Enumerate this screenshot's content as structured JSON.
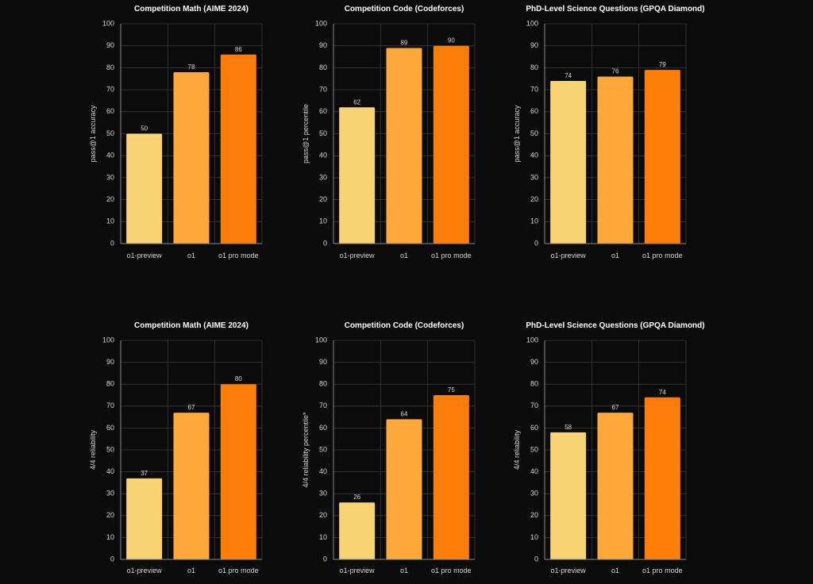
{
  "colors": {
    "background": "#0b0b0b",
    "grid": "#3a3a3a",
    "text": "#d4d4d4",
    "title": "#ffffff",
    "bar_o1_preview": "#f8d374",
    "bar_o1": "#fda83a",
    "bar_o1_pro_mode": "#fd7d0b"
  },
  "chart_data": [
    {
      "type": "bar",
      "title": "Competition Math (AIME 2024)",
      "ylabel": "pass@1 accuracy",
      "xlabel": "",
      "categories": [
        "o1-preview",
        "o1",
        "o1 pro mode"
      ],
      "values": [
        50,
        78,
        86
      ],
      "value_labels": [
        "50",
        "78",
        "86"
      ],
      "ylim": [
        0,
        100
      ],
      "yticks": [
        "0",
        "10",
        "20",
        "30",
        "40",
        "50",
        "60",
        "70",
        "80",
        "90",
        "100"
      ],
      "grid": true
    },
    {
      "type": "bar",
      "title": "Competition Code (Codeforces)",
      "ylabel": "pass@1 percentile",
      "xlabel": "",
      "categories": [
        "o1-preview",
        "o1",
        "o1 pro mode"
      ],
      "values": [
        62,
        89,
        90
      ],
      "value_labels": [
        "62",
        "89",
        "90"
      ],
      "ylim": [
        0,
        100
      ],
      "yticks": [
        "0",
        "10",
        "20",
        "30",
        "40",
        "50",
        "60",
        "70",
        "80",
        "90",
        "100"
      ],
      "grid": true
    },
    {
      "type": "bar",
      "title": "PhD-Level Science Questions (GPQA Diamond)",
      "ylabel": "pass@1 accuracy",
      "xlabel": "",
      "categories": [
        "o1-preview",
        "o1",
        "o1 pro mode"
      ],
      "values": [
        74,
        76,
        79
      ],
      "value_labels": [
        "74",
        "76",
        "79"
      ],
      "ylim": [
        0,
        100
      ],
      "yticks": [
        "0",
        "10",
        "20",
        "30",
        "40",
        "50",
        "60",
        "70",
        "80",
        "90",
        "100"
      ],
      "grid": true
    },
    {
      "type": "bar",
      "title": "Competition Math (AIME 2024)",
      "ylabel": "4/4 reliability",
      "xlabel": "",
      "categories": [
        "o1-preview",
        "o1",
        "o1 pro mode"
      ],
      "values": [
        37,
        67,
        80
      ],
      "value_labels": [
        "37",
        "67",
        "80"
      ],
      "ylim": [
        0,
        100
      ],
      "yticks": [
        "0",
        "10",
        "20",
        "30",
        "40",
        "50",
        "60",
        "70",
        "80",
        "90",
        "100"
      ],
      "grid": true
    },
    {
      "type": "bar",
      "title": "Competition Code (Codeforces)",
      "ylabel": "4/4 reliability percentile*",
      "xlabel": "",
      "categories": [
        "o1-preview",
        "o1",
        "o1 pro mode"
      ],
      "values": [
        26,
        64,
        75
      ],
      "value_labels": [
        "26",
        "64",
        "75"
      ],
      "ylim": [
        0,
        100
      ],
      "yticks": [
        "0",
        "10",
        "20",
        "30",
        "40",
        "50",
        "60",
        "70",
        "80",
        "90",
        "100"
      ],
      "grid": true
    },
    {
      "type": "bar",
      "title": "PhD-Level Science Questions (GPQA Diamond)",
      "ylabel": "4/4 reliability",
      "xlabel": "",
      "categories": [
        "o1-preview",
        "o1",
        "o1 pro mode"
      ],
      "values": [
        58,
        67,
        74
      ],
      "value_labels": [
        "58",
        "67",
        "74"
      ],
      "ylim": [
        0,
        100
      ],
      "yticks": [
        "0",
        "10",
        "20",
        "30",
        "40",
        "50",
        "60",
        "70",
        "80",
        "90",
        "100"
      ],
      "grid": true
    }
  ]
}
